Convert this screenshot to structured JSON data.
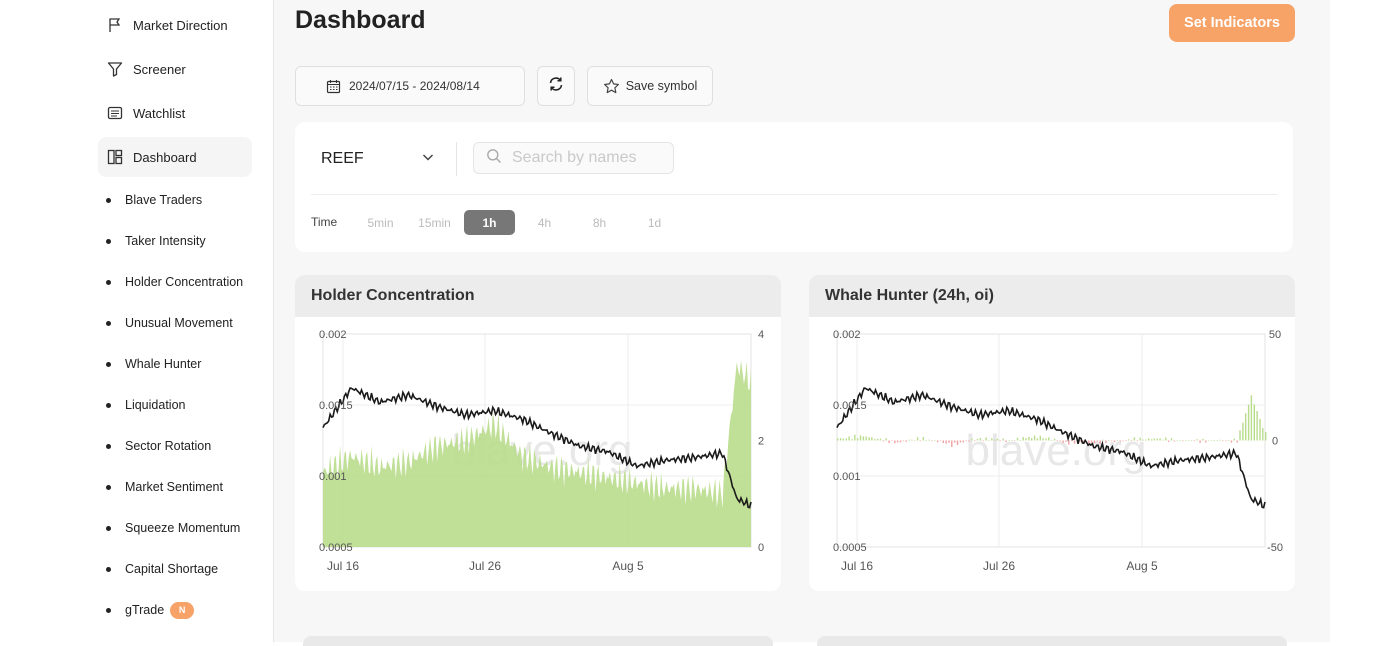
{
  "sidebar": {
    "nav": [
      {
        "label": "Market Direction",
        "icon": "flag-icon"
      },
      {
        "label": "Screener",
        "icon": "filter-icon"
      },
      {
        "label": "Watchlist",
        "icon": "list-icon"
      },
      {
        "label": "Dashboard",
        "icon": "dashboard-icon"
      }
    ],
    "sub_items": [
      {
        "label": "Blave Traders"
      },
      {
        "label": "Taker Intensity"
      },
      {
        "label": "Holder Concentration"
      },
      {
        "label": "Unusual Movement"
      },
      {
        "label": "Whale Hunter"
      },
      {
        "label": "Liquidation"
      },
      {
        "label": "Sector Rotation"
      },
      {
        "label": "Market Sentiment"
      },
      {
        "label": "Squeeze Momentum"
      },
      {
        "label": "Capital Shortage"
      },
      {
        "label": "gTrade",
        "badge": "N"
      }
    ]
  },
  "header": {
    "title": "Dashboard",
    "set_indicators": "Set Indicators"
  },
  "toolbar": {
    "date_range": "2024/07/15 - 2024/08/14",
    "save_symbol": "Save symbol"
  },
  "filters": {
    "symbol": "REEF",
    "search_placeholder": "Search by names",
    "time_label": "Time",
    "timeframes": [
      "5min",
      "15min",
      "1h",
      "4h",
      "8h",
      "1d"
    ],
    "active_timeframe": "1h"
  },
  "colors": {
    "accent": "#f7a266",
    "positive_bar": "#b9dc8c",
    "negative_bar": "#f0a0a0",
    "price_line": "#1a1a1a"
  },
  "watermark": "blave.org",
  "chart_data": [
    {
      "type": "line",
      "title": "Holder Concentration",
      "x_ticks": [
        "Jul 16",
        "Jul 26",
        "Aug 5"
      ],
      "y_left_ticks": [
        "0.002",
        "0.0015",
        "0.001",
        "0.0005"
      ],
      "y_right_ticks": [
        "4",
        "2",
        "0"
      ],
      "ylim_left": [
        0.0005,
        0.002
      ],
      "ylim_right": [
        0,
        4
      ],
      "grid": true,
      "series": [
        {
          "axis": "left",
          "style": "line",
          "x": [
            0,
            2,
            4,
            6,
            8,
            10,
            12,
            14,
            16,
            18,
            20,
            22,
            24,
            26,
            28,
            29,
            30
          ],
          "values": [
            0.00134,
            0.00162,
            0.00152,
            0.00157,
            0.00149,
            0.00143,
            0.00146,
            0.0014,
            0.0013,
            0.00121,
            0.00117,
            0.00107,
            0.00111,
            0.00113,
            0.00116,
            0.00084,
            0.00079
          ]
        },
        {
          "axis": "right",
          "style": "area",
          "x": [
            0,
            2,
            4,
            6,
            8,
            10,
            12,
            14,
            16,
            18,
            20,
            22,
            24,
            26,
            28,
            29,
            30
          ],
          "values": [
            1.4,
            1.7,
            1.5,
            1.6,
            1.9,
            2.0,
            2.3,
            1.7,
            1.5,
            1.4,
            1.3,
            1.2,
            1.1,
            1.1,
            1.0,
            3.4,
            3.1
          ]
        }
      ]
    },
    {
      "type": "line",
      "title": "Whale Hunter (24h, oi)",
      "x_ticks": [
        "Jul 16",
        "Jul 26",
        "Aug 5"
      ],
      "y_left_ticks": [
        "0.002",
        "0.0015",
        "0.001",
        "0.0005"
      ],
      "y_right_ticks": [
        "50",
        "0",
        "-50"
      ],
      "ylim_left": [
        0.0005,
        0.002
      ],
      "ylim_right": [
        -50,
        50
      ],
      "grid": true,
      "series": [
        {
          "axis": "left",
          "style": "line",
          "x": [
            0,
            2,
            4,
            6,
            8,
            10,
            12,
            14,
            16,
            18,
            20,
            22,
            24,
            26,
            28,
            29,
            30
          ],
          "values": [
            0.00134,
            0.00162,
            0.00152,
            0.00157,
            0.00149,
            0.00143,
            0.00146,
            0.0014,
            0.0013,
            0.00121,
            0.00117,
            0.00107,
            0.00111,
            0.00113,
            0.00116,
            0.00084,
            0.00079
          ]
        },
        {
          "axis": "right",
          "style": "bars",
          "x": [
            0,
            2,
            4,
            6,
            8,
            10,
            12,
            14,
            16,
            18,
            20,
            22,
            24,
            26,
            28,
            29,
            30
          ],
          "values": [
            1,
            2,
            -1,
            1,
            -2,
            1,
            0,
            2,
            -1,
            -1,
            0,
            1,
            0,
            0,
            0,
            21,
            3
          ]
        }
      ]
    }
  ]
}
